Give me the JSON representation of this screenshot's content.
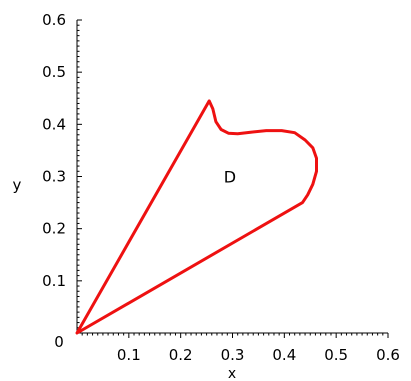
{
  "chart_data": {
    "type": "line",
    "title": "",
    "xlabel": "x",
    "ylabel": "y",
    "xlim": [
      0,
      0.6
    ],
    "ylim": [
      0,
      0.6
    ],
    "x_ticks": [
      "0.1",
      "0.2",
      "0.3",
      "0.4",
      "0.5",
      "0.6"
    ],
    "y_ticks": [
      "0.1",
      "0.2",
      "0.3",
      "0.4",
      "0.5",
      "0.6"
    ],
    "origin_label": "0",
    "grid": false,
    "legend": "none",
    "annotations": [
      {
        "text": "D",
        "x": 0.295,
        "y": 0.3
      }
    ],
    "series": [
      {
        "color": "#ee1111",
        "closed": true,
        "x": [
          0.0,
          0.255,
          0.262,
          0.268,
          0.278,
          0.292,
          0.31,
          0.335,
          0.365,
          0.395,
          0.42,
          0.44,
          0.455,
          0.462,
          0.462,
          0.455,
          0.445,
          0.435,
          0.0
        ],
        "y": [
          0.0,
          0.445,
          0.43,
          0.405,
          0.39,
          0.383,
          0.382,
          0.385,
          0.388,
          0.388,
          0.384,
          0.37,
          0.355,
          0.335,
          0.31,
          0.285,
          0.265,
          0.25,
          0.0
        ]
      }
    ]
  }
}
